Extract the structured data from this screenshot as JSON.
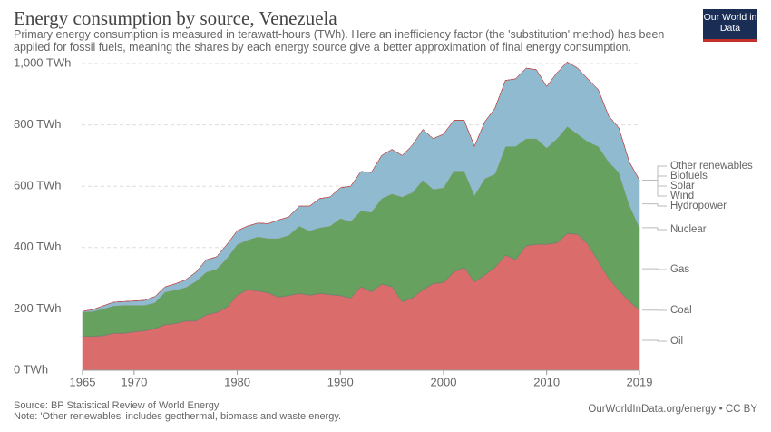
{
  "chart_data": {
    "type": "stacked_area",
    "title": "Energy consumption by source, Venezuela",
    "subtitle": "Primary energy consumption is measured in terawatt-hours (TWh). Here an inefficiency factor (the 'substitution' method) has been applied for fossil fuels, meaning the shares by each energy source give a better approximation of final energy consumption.",
    "logo": "Our World in Data",
    "source": "Source: BP Statistical Review of World Energy",
    "note": "Note: 'Other renewables' includes geothermal, biomass and waste energy.",
    "url": "OurWorldInData.org/energy • CC BY",
    "x": [
      1965,
      1966,
      1967,
      1968,
      1969,
      1970,
      1971,
      1972,
      1973,
      1974,
      1975,
      1976,
      1977,
      1978,
      1979,
      1980,
      1981,
      1982,
      1983,
      1984,
      1985,
      1986,
      1987,
      1988,
      1989,
      1990,
      1991,
      1992,
      1993,
      1994,
      1995,
      1996,
      1997,
      1998,
      1999,
      2000,
      2001,
      2002,
      2003,
      2004,
      2005,
      2006,
      2007,
      2008,
      2009,
      2010,
      2011,
      2012,
      2013,
      2014,
      2015,
      2016,
      2017,
      2018,
      2019
    ],
    "xlim": [
      1965,
      2019
    ],
    "xticks": [
      1965,
      1970,
      1980,
      1990,
      2000,
      2010,
      2019
    ],
    "ylim": [
      0,
      1000
    ],
    "yticks": [
      {
        "value": 0,
        "label": "0 TWh"
      },
      {
        "value": 200,
        "label": "200 TWh"
      },
      {
        "value": 400,
        "label": "400 TWh"
      },
      {
        "value": 600,
        "label": "600 TWh"
      },
      {
        "value": 800,
        "label": "800 TWh"
      },
      {
        "value": 1000,
        "label": "1,000 TWh"
      }
    ],
    "grid": true,
    "series": [
      {
        "name": "Oil",
        "color": "#d96464",
        "values": [
          110,
          110,
          112,
          120,
          120,
          125,
          128,
          135,
          148,
          152,
          160,
          160,
          180,
          188,
          205,
          245,
          262,
          258,
          252,
          238,
          243,
          250,
          244,
          250,
          246,
          243,
          235,
          272,
          255,
          280,
          272,
          222,
          236,
          262,
          282,
          285,
          320,
          335,
          287,
          310,
          335,
          375,
          360,
          405,
          410,
          410,
          415,
          445,
          443,
          410,
          355,
          300,
          260,
          225,
          195
        ]
      },
      {
        "name": "Coal",
        "color": "#7a7a7a",
        "values": [
          2,
          2,
          2,
          2,
          2,
          2,
          2,
          2,
          2,
          2,
          2,
          2,
          2,
          2,
          2,
          2,
          2,
          2,
          2,
          2,
          2,
          2,
          2,
          2,
          2,
          2,
          2,
          2,
          2,
          2,
          2,
          2,
          2,
          2,
          2,
          2,
          2,
          2,
          2,
          2,
          2,
          2,
          2,
          2,
          2,
          2,
          2,
          2,
          2,
          2,
          2,
          2,
          2,
          2,
          2
        ]
      },
      {
        "name": "Gas",
        "color": "#5e9c56",
        "values": [
          78,
          80,
          86,
          88,
          90,
          85,
          82,
          83,
          105,
          108,
          108,
          128,
          138,
          140,
          158,
          163,
          161,
          175,
          176,
          190,
          195,
          218,
          209,
          213,
          222,
          250,
          248,
          246,
          258,
          278,
          301,
          341,
          342,
          356,
          306,
          308,
          328,
          313,
          281,
          313,
          303,
          353,
          368,
          348,
          343,
          313,
          338,
          348,
          325,
          333,
          373,
          378,
          383,
          313,
          268
        ]
      },
      {
        "name": "Nuclear",
        "color": "#cf7f1f",
        "values": [
          0,
          0,
          0,
          0,
          0,
          0,
          0,
          0,
          0,
          0,
          0,
          0,
          0,
          0,
          0,
          0,
          0,
          0,
          0,
          0,
          0,
          0,
          0,
          0,
          0,
          0,
          0,
          0,
          0,
          0,
          0,
          0,
          0,
          0,
          0,
          0,
          0,
          0,
          0,
          0,
          0,
          0,
          0,
          0,
          0,
          0,
          0,
          0,
          0,
          0,
          0,
          0,
          0,
          0,
          0
        ]
      },
      {
        "name": "Hydropower",
        "color": "#8ab6cc",
        "values": [
          2,
          6,
          10,
          12,
          12,
          14,
          16,
          20,
          17,
          20,
          25,
          30,
          40,
          40,
          45,
          45,
          45,
          45,
          48,
          60,
          60,
          65,
          80,
          95,
          95,
          100,
          115,
          128,
          130,
          140,
          145,
          135,
          155,
          165,
          165,
          175,
          165,
          165,
          160,
          185,
          215,
          215,
          220,
          230,
          225,
          200,
          215,
          210,
          215,
          205,
          185,
          150,
          145,
          140,
          155
        ]
      },
      {
        "name": "Wind",
        "color": "#6c3d9a",
        "values": [
          0,
          0,
          0,
          0,
          0,
          0,
          0,
          0,
          0,
          0,
          0,
          0,
          0,
          0,
          0,
          0,
          0,
          0,
          0,
          0,
          0,
          0,
          0,
          0,
          0,
          0,
          0,
          0,
          0,
          0,
          0,
          0,
          0,
          0,
          0,
          0,
          0,
          0,
          0,
          0,
          0,
          0,
          0,
          0,
          0,
          0,
          0,
          0,
          0,
          0,
          0,
          0,
          0,
          0,
          0
        ]
      },
      {
        "name": "Solar",
        "color": "#e3b61c",
        "values": [
          0,
          0,
          0,
          0,
          0,
          0,
          0,
          0,
          0,
          0,
          0,
          0,
          0,
          0,
          0,
          0,
          0,
          0,
          0,
          0,
          0,
          0,
          0,
          0,
          0,
          0,
          0,
          0,
          0,
          0,
          0,
          0,
          0,
          0,
          0,
          0,
          0,
          0,
          0,
          0,
          0,
          0,
          0,
          0,
          0,
          0,
          0,
          0,
          0,
          0,
          0,
          0,
          0,
          0,
          0
        ]
      },
      {
        "name": "Biofuels",
        "color": "#3e7d2b",
        "values": [
          0,
          0,
          0,
          0,
          0,
          0,
          0,
          0,
          0,
          0,
          0,
          0,
          0,
          0,
          0,
          0,
          0,
          0,
          0,
          0,
          0,
          0,
          0,
          0,
          0,
          0,
          0,
          0,
          0,
          0,
          0,
          0,
          0,
          0,
          0,
          0,
          0,
          0,
          0,
          0,
          0,
          0,
          0,
          0,
          0,
          0,
          0,
          0,
          0,
          0,
          0,
          0,
          0,
          0,
          0
        ]
      },
      {
        "name": "Other renewables",
        "color": "#d9435b",
        "values": [
          0,
          0,
          0,
          0,
          0,
          0,
          0,
          0,
          0,
          0,
          0,
          0,
          0,
          0,
          0,
          0,
          0,
          0,
          0,
          0,
          0,
          0,
          0,
          0,
          0,
          0,
          0,
          0,
          0,
          0,
          0,
          0,
          0,
          0,
          0,
          0,
          0,
          0,
          0,
          0,
          0,
          0,
          0,
          0,
          0,
          0,
          0,
          0,
          0,
          0,
          0,
          0,
          0,
          0,
          0
        ]
      }
    ]
  }
}
